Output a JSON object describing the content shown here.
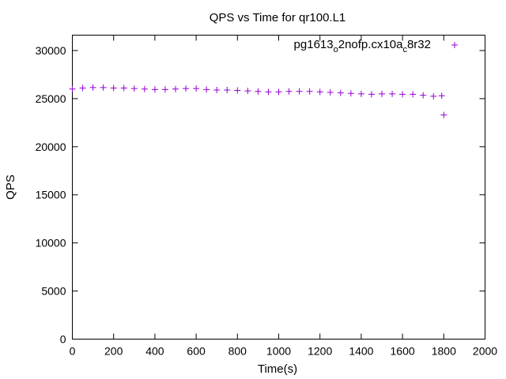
{
  "chart_data": {
    "type": "scatter",
    "title": "QPS vs Time for qr100.L1",
    "xlabel": "Time(s)",
    "ylabel": "QPS",
    "xlim": [
      0,
      2000
    ],
    "ylim": [
      0,
      31600
    ],
    "x_ticks": [
      "0",
      "200",
      "400",
      "600",
      "800",
      "1000",
      "1200",
      "1400",
      "1600",
      "1800",
      "2000"
    ],
    "y_ticks": [
      "0",
      "5000",
      "10000",
      "15000",
      "20000",
      "25000",
      "30000"
    ],
    "legend_position": "top-right",
    "grid": false,
    "series": [
      {
        "name_parts": [
          "pg1613",
          "o",
          "2nofp.cx10a",
          "c",
          "8r32"
        ],
        "color": "#9400d3",
        "marker": "plus",
        "x": [
          0,
          50,
          100,
          150,
          200,
          250,
          300,
          350,
          400,
          450,
          500,
          550,
          600,
          650,
          700,
          750,
          800,
          850,
          900,
          950,
          1000,
          1050,
          1100,
          1150,
          1200,
          1250,
          1300,
          1350,
          1400,
          1450,
          1500,
          1550,
          1600,
          1650,
          1700,
          1750,
          1790,
          1800
        ],
        "y": [
          26000,
          26100,
          26150,
          26150,
          26100,
          26100,
          26050,
          26000,
          25950,
          25950,
          26000,
          26050,
          26050,
          25950,
          25900,
          25900,
          25850,
          25800,
          25750,
          25700,
          25700,
          25750,
          25750,
          25750,
          25700,
          25650,
          25600,
          25550,
          25500,
          25450,
          25500,
          25500,
          25450,
          25450,
          25350,
          25250,
          25300,
          23300
        ]
      }
    ]
  }
}
